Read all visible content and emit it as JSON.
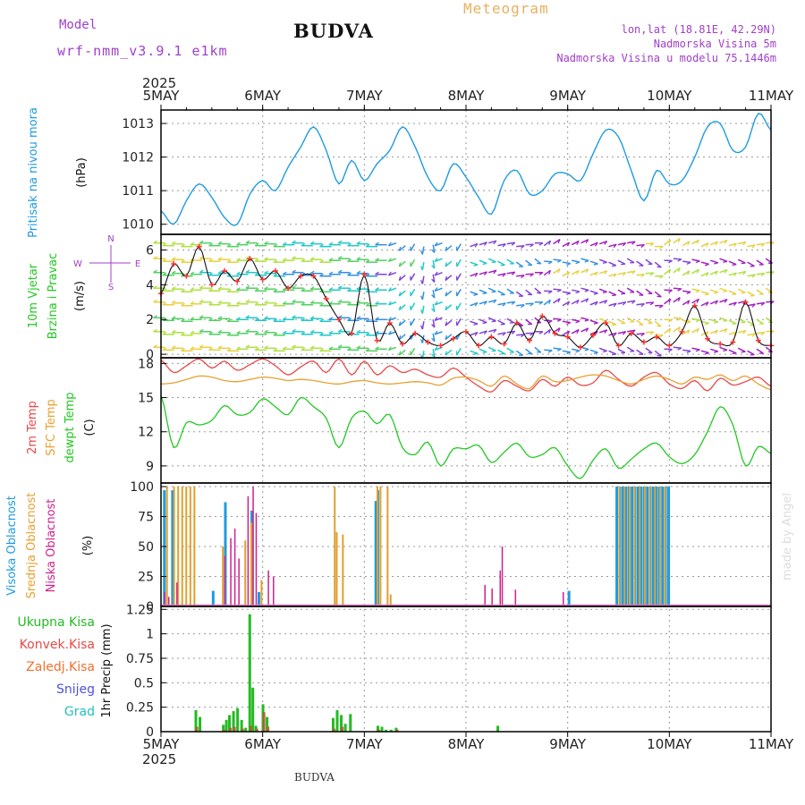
{
  "header": {
    "model_label": "Model",
    "model_name": "wrf-nmm_v3.9.1 e1km",
    "station": "BUDVA",
    "product": "Meteogram",
    "coords": "lon,lat (18.81E, 42.29N)",
    "elevation": "Nadmorska Visina 5m",
    "model_elevation": "Nadmorska Visina u modelu 75.1446m",
    "year_top": "2025",
    "year_bottom": "2025",
    "footer_station": "BUDVA",
    "credit": "made by Angel"
  },
  "colors": {
    "pressure": "#1e9be0",
    "temp2m": "#e84848",
    "sfc_temp": "#e8a030",
    "dewpoint": "#22c822",
    "cloud_high": "#1e9be0",
    "cloud_mid": "#e0a030",
    "cloud_low": "#d0208c",
    "rain_total": "#22bb22",
    "rain_conv": "#e84848",
    "snow": "#5050e0",
    "hail": "#22c0c0",
    "wind_compass": "#a040c8"
  },
  "axes": {
    "x_labels": [
      "5MAY",
      "6MAY",
      "7MAY",
      "8MAY",
      "9MAY",
      "10MAY",
      "11MAY"
    ],
    "pressure_ticks": [
      "1010",
      "1011",
      "1012",
      "1013"
    ],
    "wind_ticks": [
      "0",
      "2",
      "4",
      "6"
    ],
    "temp_ticks": [
      "9",
      "12",
      "15",
      "18"
    ],
    "cloud_ticks": [
      "0",
      "25",
      "50",
      "75",
      "100"
    ],
    "precip_ticks": [
      "0",
      "0.25",
      "0.5",
      "0.75",
      "1",
      "1.25"
    ]
  },
  "panel_labels": {
    "pressure": "Pritisak na nivou mora",
    "pressure_unit": "(hPa)",
    "wind_a": "10m Vjetar",
    "wind_b": "Brzina i Pravac",
    "wind_unit": "(m/s)",
    "compass_n": "N",
    "compass_s": "S",
    "compass_w": "W",
    "compass_e": "E",
    "temp_a": "2m Temp",
    "temp_b": "SFC Temp",
    "temp_c": "dewpt Temp",
    "temp_unit": "(C)",
    "cloud_high": "Visoka Oblacnost",
    "cloud_mid": "Srednja Oblacnost",
    "cloud_low": "Niska Oblacnost",
    "cloud_unit": "(%)",
    "rain_total": "Ukupna Kisa",
    "rain_conv": "Konvek.Kisa",
    "rain_frozen": "Zaledj.Kisa",
    "snow": "Snijeg",
    "hail": "Grad",
    "precip_unit": "1hr Precip (mm)"
  },
  "chart_data": [
    {
      "type": "line",
      "name": "pressure",
      "ylim": [
        1009.7,
        1013.4
      ],
      "x_days": [
        0,
        0.125,
        0.25,
        0.375,
        0.5,
        0.625,
        0.75,
        0.875,
        1,
        1.125,
        1.25,
        1.375,
        1.5,
        1.625,
        1.75,
        1.875,
        2,
        2.125,
        2.25,
        2.375,
        2.5,
        2.625,
        2.75,
        2.875,
        3,
        3.125,
        3.25,
        3.375,
        3.5,
        3.625,
        3.75,
        3.875,
        4,
        4.125,
        4.25,
        4.375,
        4.5,
        4.625,
        4.75,
        4.875,
        5,
        5.125,
        5.25,
        5.375,
        5.5,
        5.625,
        5.75,
        5.875,
        6
      ],
      "series": [
        {
          "values": [
            1010.4,
            1010.0,
            1010.7,
            1011.2,
            1010.8,
            1010.2,
            1010.0,
            1010.9,
            1011.3,
            1011.0,
            1011.7,
            1012.3,
            1012.9,
            1012.2,
            1011.2,
            1011.9,
            1011.3,
            1011.8,
            1012.2,
            1012.9,
            1012.3,
            1011.4,
            1011.0,
            1011.8,
            1011.4,
            1010.8,
            1010.3,
            1011.3,
            1011.6,
            1010.9,
            1011.0,
            1011.5,
            1011.5,
            1011.3,
            1012.1,
            1012.8,
            1012.6,
            1011.6,
            1010.7,
            1011.6,
            1011.2,
            1011.3,
            1012.0,
            1012.9,
            1013.0,
            1012.2,
            1012.3,
            1013.3,
            1012.8
          ]
        }
      ]
    },
    {
      "type": "line",
      "name": "wind",
      "ylim": [
        -0.2,
        6.9
      ],
      "x_days": [
        0,
        0.125,
        0.25,
        0.375,
        0.5,
        0.625,
        0.75,
        0.875,
        1,
        1.125,
        1.25,
        1.375,
        1.5,
        1.625,
        1.75,
        1.875,
        2,
        2.125,
        2.25,
        2.375,
        2.5,
        2.625,
        2.75,
        2.875,
        3,
        3.125,
        3.25,
        3.375,
        3.5,
        3.625,
        3.75,
        3.875,
        4,
        4.125,
        4.25,
        4.375,
        4.5,
        4.625,
        4.75,
        4.875,
        5,
        5.125,
        5.25,
        5.375,
        5.5,
        5.625,
        5.75,
        5.875,
        6
      ],
      "series": [
        {
          "values": [
            3.5,
            5.2,
            4.5,
            6.2,
            4.0,
            4.8,
            4.2,
            5.5,
            4.3,
            4.8,
            3.8,
            4.5,
            4.5,
            3.2,
            2.0,
            1.2,
            4.6,
            0.8,
            1.8,
            0.6,
            1.2,
            0.7,
            0.5,
            0.9,
            1.3,
            0.5,
            1.0,
            0.6,
            1.8,
            0.8,
            2.2,
            1.2,
            1.0,
            0.4,
            1.1,
            1.8,
            0.5,
            1.2,
            0.7,
            1.0,
            0.5,
            1.3,
            2.8,
            0.9,
            0.6,
            0.7,
            3.0,
            0.8,
            0.5
          ]
        }
      ]
    },
    {
      "type": "line",
      "name": "temperature",
      "ylim": [
        7.5,
        18.5
      ],
      "x_days": [
        0,
        0.125,
        0.25,
        0.375,
        0.5,
        0.625,
        0.75,
        0.875,
        1,
        1.125,
        1.25,
        1.375,
        1.5,
        1.625,
        1.75,
        1.875,
        2,
        2.125,
        2.25,
        2.375,
        2.5,
        2.625,
        2.75,
        2.875,
        3,
        3.125,
        3.25,
        3.375,
        3.5,
        3.625,
        3.75,
        3.875,
        4,
        4.125,
        4.25,
        4.375,
        4.5,
        4.625,
        4.75,
        4.875,
        5,
        5.125,
        5.25,
        5.375,
        5.5,
        5.625,
        5.75,
        5.875,
        6
      ],
      "series": [
        {
          "name": "2m Temp",
          "values": [
            18.3,
            17.2,
            17.8,
            18.4,
            17.6,
            18.2,
            17.4,
            17.9,
            18.4,
            17.8,
            17.0,
            17.7,
            18.2,
            17.2,
            18.4,
            17.0,
            18.2,
            17.0,
            17.8,
            17.2,
            17.5,
            17.0,
            16.8,
            17.6,
            16.8,
            16.0,
            15.5,
            16.5,
            16.0,
            15.6,
            16.6,
            16.0,
            16.8,
            16.1,
            16.3,
            17.4,
            16.6,
            16.0,
            16.8,
            17.2,
            16.2,
            15.8,
            16.5,
            15.6,
            16.7,
            16.1,
            16.4,
            16.8,
            16.0
          ]
        },
        {
          "name": "SFC Temp",
          "values": [
            16.2,
            16.3,
            16.6,
            16.9,
            16.8,
            16.5,
            16.4,
            16.6,
            16.8,
            16.7,
            16.5,
            16.6,
            16.5,
            16.3,
            16.2,
            16.4,
            16.5,
            16.3,
            16.2,
            16.3,
            16.4,
            16.3,
            16.1,
            16.7,
            16.8,
            16.5,
            16.0,
            16.9,
            16.2,
            15.8,
            16.9,
            16.4,
            16.5,
            16.8,
            17.0,
            16.9,
            16.5,
            16.2,
            16.6,
            16.9,
            16.6,
            16.2,
            16.8,
            16.6,
            17.0,
            16.5,
            16.9,
            16.2,
            15.7
          ]
        },
        {
          "name": "dewpt Temp",
          "values": [
            15.2,
            10.6,
            12.8,
            12.6,
            13.0,
            14.3,
            13.5,
            13.7,
            14.9,
            14.2,
            13.5,
            15.0,
            14.2,
            13.2,
            10.6,
            13.2,
            13.8,
            12.7,
            13.5,
            10.6,
            10.0,
            11.1,
            9.0,
            10.5,
            10.5,
            10.8,
            9.3,
            10.2,
            11.0,
            9.8,
            10.0,
            10.6,
            9.0,
            7.9,
            9.5,
            10.5,
            8.8,
            9.6,
            10.5,
            11.0,
            9.8,
            9.2,
            10.0,
            12.0,
            14.2,
            12.6,
            9.0,
            10.7,
            10.1
          ]
        }
      ]
    },
    {
      "type": "bar",
      "name": "cloud_cover",
      "ylim": [
        0,
        103
      ],
      "series": [
        {
          "name": "Visoka Oblacnost",
          "x_days": [
            0.02,
            0.1,
            0.5,
            0.62,
            0.88,
            0.95,
            2.1,
            2.12,
            4.0,
            4.47,
            4.5,
            4.53,
            4.56,
            4.59,
            4.62,
            4.65,
            4.68,
            4.71,
            4.74,
            4.77,
            4.8,
            4.83,
            4.86,
            4.89,
            4.92,
            4.95,
            4.98
          ],
          "values": [
            97,
            97,
            13,
            87,
            80,
            12,
            88,
            97,
            13,
            100,
            100,
            100,
            100,
            100,
            100,
            100,
            100,
            100,
            100,
            100,
            100,
            100,
            100,
            100,
            100,
            100,
            100
          ]
        },
        {
          "name": "Srednja Oblacnost",
          "x_days": [
            0.05,
            0.12,
            0.16,
            0.2,
            0.24,
            0.28,
            0.32,
            0.6,
            0.82,
            0.88,
            0.98,
            1.7,
            1.72,
            1.78,
            2.12,
            2.15,
            2.22,
            2.25,
            4.5,
            4.55,
            4.6,
            4.65,
            4.7,
            4.75,
            4.8,
            4.85,
            4.9,
            4.95
          ],
          "values": [
            100,
            100,
            100,
            100,
            100,
            100,
            100,
            50,
            55,
            70,
            22,
            100,
            62,
            60,
            100,
            100,
            100,
            10,
            100,
            100,
            100,
            100,
            100,
            100,
            100,
            100,
            100,
            100
          ]
        },
        {
          "name": "Niska Oblacnost",
          "x_days": [
            0.03,
            0.07,
            0.15,
            0.62,
            0.68,
            0.72,
            0.76,
            0.85,
            0.9,
            0.93,
            1.05,
            1.1,
            3.18,
            3.25,
            3.33,
            3.35,
            3.48,
            3.95
          ],
          "values": [
            12,
            8,
            20,
            42,
            57,
            65,
            40,
            92,
            100,
            78,
            30,
            25,
            18,
            15,
            30,
            50,
            14,
            12
          ]
        }
      ]
    },
    {
      "type": "bar",
      "name": "precipitation",
      "ylim": [
        0,
        1.28
      ],
      "series": [
        {
          "name": "Ukupna Kisa",
          "x_days": [
            0.33,
            0.37,
            0.6,
            0.63,
            0.66,
            0.7,
            0.74,
            0.78,
            0.82,
            0.86,
            0.89,
            0.92,
            0.99,
            1.03,
            1.68,
            1.72,
            1.76,
            1.8,
            1.85,
            2.12,
            2.16,
            2.2,
            2.25,
            2.3,
            3.3
          ],
          "values": [
            0.22,
            0.15,
            0.07,
            0.12,
            0.17,
            0.21,
            0.24,
            0.12,
            0.04,
            1.2,
            0.45,
            0.06,
            0.28,
            0.15,
            0.14,
            0.22,
            0.17,
            0.08,
            0.18,
            0.06,
            0.05,
            0.02,
            0.02,
            0.04,
            0.06
          ]
        },
        {
          "name": "Konvek.Kisa",
          "x_days": [
            0.34,
            0.61,
            0.67,
            0.71,
            0.79,
            0.87,
            0.93,
            1.0,
            1.04,
            1.69,
            1.77,
            2.13,
            2.31
          ],
          "values": [
            0.05,
            0.02,
            0.04,
            0.05,
            0.03,
            0.06,
            0.03,
            0.2,
            0.05,
            0.03,
            0.05,
            0.02,
            0.02
          ]
        }
      ]
    }
  ]
}
